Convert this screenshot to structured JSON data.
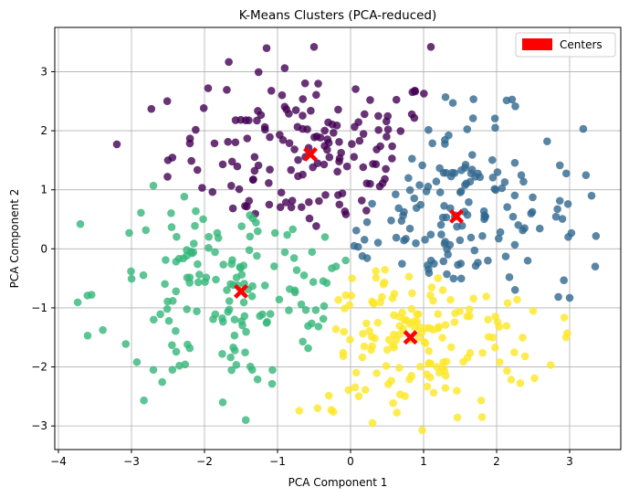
{
  "chart_data": {
    "type": "scatter",
    "title": "K-Means Clusters (PCA-reduced)",
    "xlabel": "PCA Component 1",
    "ylabel": "PCA Component 2",
    "xlim": [
      -4.05,
      3.7
    ],
    "ylim": [
      -3.4,
      3.75
    ],
    "xticks": [
      -4,
      -3,
      -2,
      -1,
      0,
      1,
      2,
      3
    ],
    "yticks": [
      -3,
      -2,
      -1,
      0,
      1,
      2,
      3
    ],
    "xtick_labels": [
      "−4",
      "−3",
      "−2",
      "−1",
      "0",
      "1",
      "2",
      "3"
    ],
    "ytick_labels": [
      "−3",
      "−2",
      "−1",
      "0",
      "1",
      "2",
      "3"
    ],
    "grid": true,
    "legend": {
      "position": "top-right",
      "entries": [
        {
          "label": "Centers",
          "color": "#ff0000"
        }
      ]
    },
    "point_counts": [
      150,
      150,
      150,
      150
    ],
    "cluster_colors": [
      "#440154",
      "#31688e",
      "#35b779",
      "#fde725"
    ],
    "centers": {
      "name": "Centers",
      "color": "#ff0000",
      "marker": "X",
      "x": [
        -0.55,
        1.45,
        -1.5,
        0.82
      ],
      "y": [
        1.6,
        0.55,
        -0.72,
        -1.5
      ]
    },
    "clusters": [
      {
        "cluster": 0,
        "color": "#440154",
        "center": [
          -0.55,
          1.6
        ],
        "spread": [
          0.95,
          0.72
        ]
      },
      {
        "cluster": 1,
        "color": "#31688e",
        "center": [
          1.45,
          0.55
        ],
        "spread": [
          0.85,
          0.85
        ]
      },
      {
        "cluster": 2,
        "color": "#35b779",
        "center": [
          -1.5,
          -0.72
        ],
        "spread": [
          1.0,
          0.9
        ]
      },
      {
        "cluster": 3,
        "color": "#fde725",
        "center": [
          0.82,
          -1.5
        ],
        "spread": [
          0.9,
          0.75
        ]
      }
    ],
    "sample_points": [
      {
        "cluster": 0,
        "x": -0.5,
        "y": 3.42
      },
      {
        "cluster": 0,
        "x": 1.1,
        "y": 3.42
      },
      {
        "cluster": 0,
        "x": -1.95,
        "y": 2.72
      },
      {
        "cluster": 0,
        "x": -2.5,
        "y": 1.5
      },
      {
        "cluster": 0,
        "x": -3.2,
        "y": 1.77
      },
      {
        "cluster": 0,
        "x": 0.38,
        "y": 2.25
      },
      {
        "cluster": 1,
        "x": 1.3,
        "y": 2.57
      },
      {
        "cluster": 1,
        "x": 3.35,
        "y": -0.3
      },
      {
        "cluster": 1,
        "x": 3.0,
        "y": -0.83
      },
      {
        "cluster": 1,
        "x": 3.3,
        "y": 0.9
      },
      {
        "cluster": 1,
        "x": 1.98,
        "y": 2.05
      },
      {
        "cluster": 1,
        "x": 0.05,
        "y": 0.05
      },
      {
        "cluster": 2,
        "x": -3.7,
        "y": 0.42
      },
      {
        "cluster": 2,
        "x": -3.6,
        "y": -1.47
      },
      {
        "cluster": 2,
        "x": -1.75,
        "y": -2.6
      },
      {
        "cluster": 2,
        "x": -2.7,
        "y": -2.05
      },
      {
        "cluster": 2,
        "x": -2.7,
        "y": 1.07
      },
      {
        "cluster": 2,
        "x": -0.35,
        "y": 0.2
      },
      {
        "cluster": 3,
        "x": 0.98,
        "y": -3.07
      },
      {
        "cluster": 3,
        "x": 0.3,
        "y": -2.95
      },
      {
        "cluster": 3,
        "x": 2.95,
        "y": -1.5
      },
      {
        "cluster": 3,
        "x": 1.8,
        "y": -2.85
      },
      {
        "cluster": 3,
        "x": 0.02,
        "y": -0.5
      },
      {
        "cluster": 3,
        "x": 2.5,
        "y": -1.05
      }
    ]
  }
}
